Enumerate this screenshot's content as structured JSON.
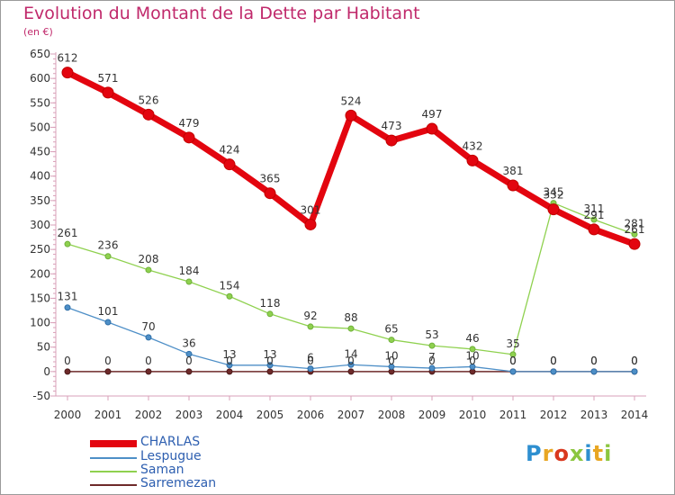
{
  "header": {
    "title": "Evolution du Montant de la Dette par Habitant",
    "unit": "(en €)"
  },
  "logo": {
    "text": "Proxiti",
    "letter_colors": [
      "#2e8fd0",
      "#e8a623",
      "#d9381e",
      "#8cc63f",
      "#2e8fd0",
      "#e8a623",
      "#8cc63f"
    ]
  },
  "chart_data": {
    "type": "line",
    "title": "Evolution du Montant de la Dette par Habitant",
    "ylabel": "(en €)",
    "xlabel": "",
    "x": [
      "2000",
      "2001",
      "2002",
      "2003",
      "2004",
      "2005",
      "2006",
      "2007",
      "2008",
      "2009",
      "2010",
      "2011",
      "2012",
      "2013",
      "2014"
    ],
    "ylim": [
      -50,
      650
    ],
    "yticks": [
      -50,
      0,
      50,
      100,
      150,
      200,
      250,
      300,
      350,
      400,
      450,
      500,
      550,
      600,
      650
    ],
    "grid": false,
    "legend_position": "bottom-left",
    "series": [
      {
        "name": "CHARLAS",
        "color": "#e3050f",
        "values": [
          612,
          571,
          526,
          479,
          424,
          365,
          301,
          524,
          473,
          497,
          432,
          381,
          332,
          291,
          261
        ]
      },
      {
        "name": "Lespugue",
        "color": "#4e8fc7",
        "values": [
          131,
          101,
          70,
          36,
          13,
          13,
          6,
          14,
          10,
          7,
          10,
          0,
          0,
          0,
          0
        ]
      },
      {
        "name": "Saman",
        "color": "#8fd14f",
        "values": [
          261,
          236,
          208,
          184,
          154,
          118,
          92,
          88,
          65,
          53,
          46,
          35,
          345,
          311,
          281
        ]
      },
      {
        "name": "Sarremezan",
        "color": "#6e2a2a",
        "values": [
          0,
          0,
          0,
          0,
          0,
          0,
          0,
          0,
          0,
          0,
          0,
          0,
          0,
          0,
          0
        ]
      }
    ]
  }
}
